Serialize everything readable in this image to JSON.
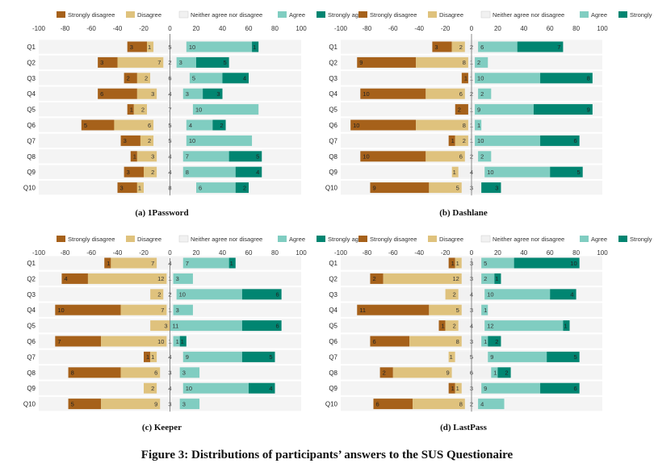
{
  "figure_caption": "Figure 3: Distributions of participants’ answers to the SUS Questionaire",
  "legend_labels": [
    "Strongly disagree",
    "Disagree",
    "Neither agree nor disagree",
    "Agree",
    "Strongly agree"
  ],
  "colors": {
    "strongly_disagree": "#a6611a",
    "disagree": "#dfc27d",
    "neutral": "#f1f1f1",
    "agree": "#80cdc1",
    "strongly_agree": "#018571",
    "row_band": "#f4f4f4",
    "zero_line": "#888888",
    "text": "#222222"
  },
  "chart_data": [
    {
      "type": "bar",
      "caption": "(a) 1Password",
      "xlim": [
        -100,
        100
      ],
      "ticks": [
        -100,
        -80,
        -60,
        -40,
        -20,
        0,
        20,
        40,
        60,
        80,
        100
      ],
      "categories": [
        "Q1",
        "Q2",
        "Q3",
        "Q4",
        "Q5",
        "Q6",
        "Q7",
        "Q8",
        "Q9",
        "Q10"
      ],
      "counts": [
        [
          3,
          1,
          5,
          10,
          1
        ],
        [
          3,
          7,
          2,
          3,
          5
        ],
        [
          2,
          2,
          6,
          5,
          4
        ],
        [
          6,
          3,
          4,
          3,
          3
        ],
        [
          1,
          2,
          7,
          10,
          0
        ],
        [
          5,
          6,
          5,
          4,
          2
        ],
        [
          3,
          2,
          5,
          10,
          0
        ],
        [
          1,
          3,
          4,
          7,
          5
        ],
        [
          3,
          2,
          4,
          8,
          4
        ],
        [
          3,
          1,
          8,
          6,
          2
        ]
      ]
    },
    {
      "type": "bar",
      "caption": "(b) Dashlane",
      "xlim": [
        -100,
        100
      ],
      "ticks": [
        -100,
        -80,
        -60,
        -40,
        -20,
        0,
        20,
        40,
        60,
        80,
        100
      ],
      "categories": [
        "Q1",
        "Q2",
        "Q3",
        "Q4",
        "Q5",
        "Q6",
        "Q7",
        "Q8",
        "Q9",
        "Q10"
      ],
      "counts": [
        [
          3,
          2,
          2,
          6,
          7
        ],
        [
          9,
          8,
          1,
          2,
          0
        ],
        [
          1,
          0,
          1,
          10,
          8
        ],
        [
          10,
          6,
          2,
          2,
          0
        ],
        [
          2,
          0,
          1,
          9,
          9
        ],
        [
          10,
          8,
          1,
          1,
          0
        ],
        [
          1,
          2,
          1,
          10,
          6
        ],
        [
          10,
          6,
          2,
          2,
          0
        ],
        [
          0,
          1,
          4,
          10,
          5
        ],
        [
          9,
          5,
          3,
          0,
          3
        ]
      ]
    },
    {
      "type": "bar",
      "caption": "(c) Keeper",
      "xlim": [
        -100,
        100
      ],
      "ticks": [
        -100,
        -80,
        -60,
        -40,
        -20,
        0,
        20,
        40,
        60,
        80,
        100
      ],
      "categories": [
        "Q1",
        "Q2",
        "Q3",
        "Q4",
        "Q5",
        "Q6",
        "Q7",
        "Q8",
        "Q9",
        "Q10"
      ],
      "counts": [
        [
          1,
          7,
          4,
          7,
          1
        ],
        [
          4,
          12,
          1,
          3,
          0
        ],
        [
          0,
          2,
          2,
          10,
          6
        ],
        [
          10,
          7,
          1,
          3,
          0
        ],
        [
          0,
          3,
          0,
          11,
          6
        ],
        [
          7,
          10,
          1,
          1,
          1
        ],
        [
          1,
          1,
          4,
          9,
          5
        ],
        [
          8,
          6,
          3,
          3,
          0
        ],
        [
          0,
          2,
          4,
          10,
          4
        ],
        [
          5,
          9,
          3,
          3,
          0
        ]
      ]
    },
    {
      "type": "bar",
      "caption": "(d) LastPass",
      "xlim": [
        -100,
        100
      ],
      "ticks": [
        -100,
        -80,
        -60,
        -40,
        -20,
        0,
        20,
        40,
        60,
        80,
        100
      ],
      "categories": [
        "Q1",
        "Q2",
        "Q3",
        "Q4",
        "Q5",
        "Q6",
        "Q7",
        "Q8",
        "Q9",
        "Q10"
      ],
      "counts": [
        [
          1,
          1,
          3,
          5,
          10
        ],
        [
          2,
          12,
          3,
          2,
          1
        ],
        [
          0,
          2,
          4,
          10,
          4
        ],
        [
          11,
          5,
          3,
          1,
          0
        ],
        [
          1,
          2,
          4,
          12,
          1
        ],
        [
          6,
          8,
          3,
          1,
          2
        ],
        [
          0,
          1,
          5,
          9,
          5
        ],
        [
          2,
          9,
          6,
          1,
          2
        ],
        [
          1,
          1,
          3,
          9,
          6
        ],
        [
          6,
          8,
          2,
          4,
          0
        ]
      ]
    }
  ]
}
